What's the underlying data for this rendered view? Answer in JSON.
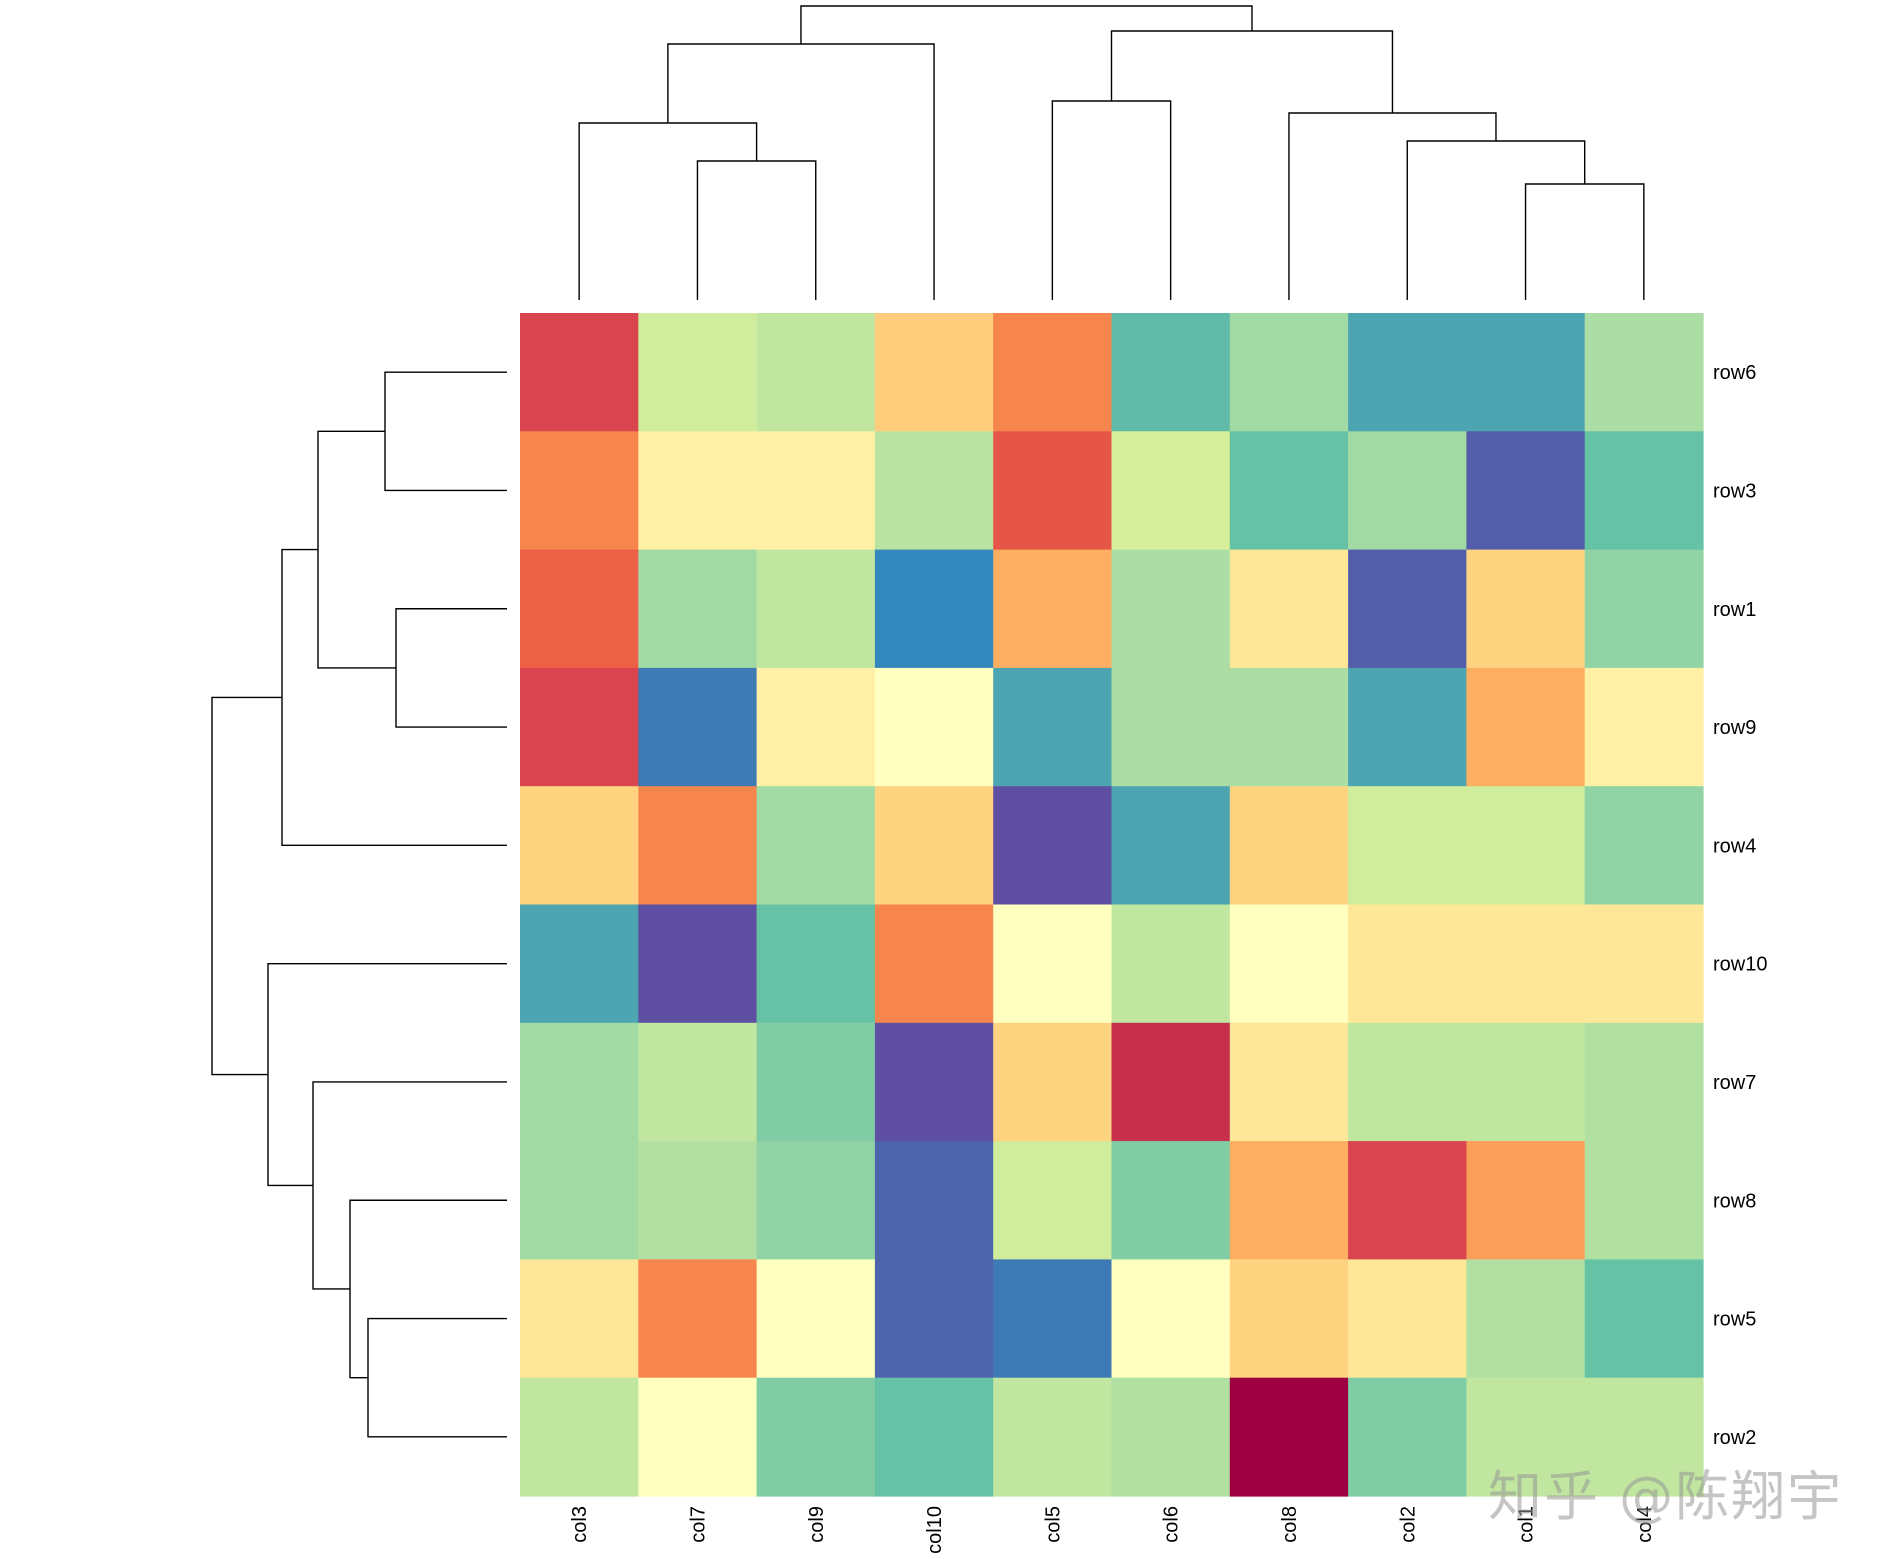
{
  "chart_data": {
    "type": "heatmap",
    "title": "",
    "xlabel": "",
    "ylabel": "",
    "colormap": "Spectral",
    "value_range": [
      -2,
      2
    ],
    "rows": [
      "row6",
      "row3",
      "row1",
      "row9",
      "row4",
      "row10",
      "row7",
      "row8",
      "row5",
      "row2"
    ],
    "columns": [
      "col3",
      "col7",
      "col9",
      "col10",
      "col5",
      "col6",
      "col8",
      "col2",
      "col1",
      "col4"
    ],
    "values": [
      [
        1.55,
        -0.55,
        -0.65,
        0.55,
        1.05,
        -1.25,
        -0.85,
        -1.4,
        -1.4,
        -0.8
      ],
      [
        1.05,
        0.2,
        0.2,
        -0.7,
        1.4,
        -0.5,
        -1.2,
        -0.85,
        -1.9,
        -1.2
      ],
      [
        1.3,
        -0.85,
        -0.65,
        -1.6,
        0.8,
        -0.8,
        0.3,
        -1.9,
        0.5,
        -0.95
      ],
      [
        1.55,
        -1.7,
        0.2,
        0.0,
        -1.4,
        -0.8,
        -0.8,
        -1.4,
        0.8,
        0.2
      ],
      [
        0.5,
        1.05,
        -0.85,
        0.5,
        -2.0,
        -1.4,
        0.5,
        -0.55,
        -0.55,
        -0.95
      ],
      [
        -1.4,
        -2.0,
        -1.2,
        1.05,
        0.0,
        -0.65,
        0.0,
        0.3,
        0.3,
        0.3
      ],
      [
        -0.85,
        -0.65,
        -1.05,
        -2.0,
        0.5,
        1.7,
        0.3,
        -0.65,
        -0.65,
        -0.75
      ],
      [
        -0.85,
        -0.75,
        -0.95,
        -1.85,
        -0.55,
        -1.05,
        0.8,
        1.55,
        0.9,
        -0.75
      ],
      [
        0.3,
        1.05,
        0.0,
        -1.85,
        -1.7,
        0.0,
        0.5,
        0.3,
        -0.75,
        -1.2
      ],
      [
        -0.65,
        0.0,
        -1.05,
        -1.2,
        -0.65,
        -0.75,
        2.0,
        -1.05,
        -0.65,
        -0.65
      ]
    ],
    "legend": "none"
  },
  "watermark": "知乎 @陈翔宇"
}
